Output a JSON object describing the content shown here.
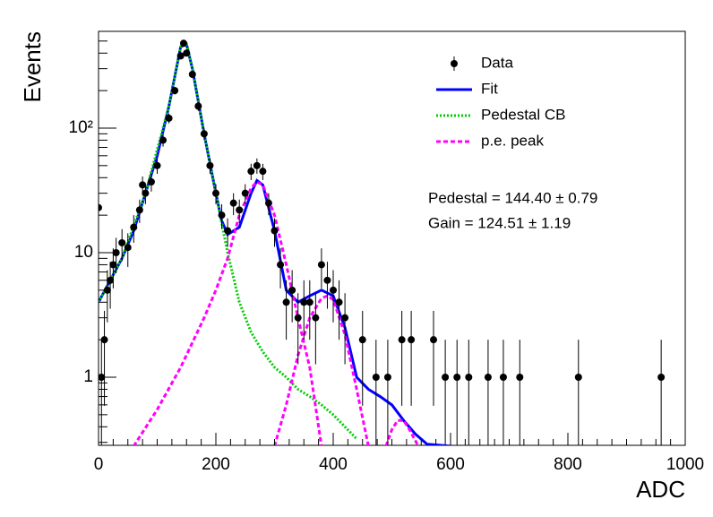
{
  "chart_data": {
    "type": "scatter",
    "xlabel": "ADC",
    "ylabel": "Events",
    "xlim": [
      0,
      1000
    ],
    "ylim": [
      0.284,
      598
    ],
    "log_y": true,
    "xticks": [
      0,
      200,
      400,
      600,
      800,
      1000
    ],
    "yticks": [
      1,
      10,
      {
        "value": 100,
        "label": "10²"
      }
    ],
    "legend": "top-right",
    "data": {
      "name": "Data",
      "color": "#000000",
      "x": [
        0,
        5,
        10,
        15,
        20,
        25,
        30,
        40,
        50,
        60,
        70,
        75,
        80,
        90,
        100,
        110,
        120,
        130,
        140,
        145,
        150,
        160,
        170,
        180,
        190,
        200,
        210,
        220,
        230,
        240,
        250,
        260,
        270,
        280,
        290,
        300,
        310,
        320,
        330,
        340,
        350,
        360,
        370,
        380,
        390,
        400,
        410,
        420,
        450,
        473,
        493,
        517,
        533,
        571,
        591,
        611,
        631,
        664,
        690,
        718,
        818,
        959
      ],
      "values": [
        23,
        1,
        2,
        5,
        6,
        8,
        10,
        12,
        11,
        16,
        22,
        35,
        30,
        37,
        50,
        80,
        120,
        200,
        380,
        480,
        400,
        270,
        150,
        90,
        50,
        30,
        20,
        15,
        25,
        22,
        30,
        45,
        50,
        45,
        25,
        15,
        8,
        4,
        5,
        3,
        4,
        4,
        3,
        8,
        6,
        5,
        4,
        3,
        2,
        1,
        1,
        2,
        2,
        2,
        1,
        1,
        1,
        1,
        1,
        1,
        1,
        1
      ],
      "errors": [
        4.8,
        1,
        1.41,
        2.24,
        2.45,
        2.83,
        3.16,
        3.46,
        3.32,
        4,
        4.69,
        5.92,
        5.48,
        6.08,
        7.07,
        8.94,
        10.95,
        14.14,
        19.49,
        21.91,
        20,
        16.43,
        12.25,
        9.49,
        7.07,
        5.48,
        4.47,
        3.87,
        5,
        4.69,
        5.48,
        6.71,
        7.07,
        6.71,
        5,
        3.87,
        2.83,
        2,
        2.24,
        1.73,
        2,
        2,
        1.73,
        2.83,
        2.45,
        2.24,
        2,
        1.73,
        1.41,
        1,
        1,
        1.41,
        1.41,
        1.41,
        1,
        1,
        1,
        1,
        1,
        1,
        1,
        1
      ]
    },
    "curves": [
      {
        "name": "Fit",
        "color": "#0000ff",
        "style": "solid",
        "segments": [
          {
            "x": [
              0,
              20,
              40,
              60,
              80,
              100,
              120,
              140,
              150,
              160,
              180,
              200,
              210,
              220,
              240,
              260,
              270,
              280,
              300,
              320,
              340,
              360,
              380,
              400,
              420,
              440,
              460,
              480,
              500,
              520,
              540,
              560,
              600
            ],
            "values": [
              4,
              6,
              9,
              15,
              30,
              60,
              150,
              450,
              470,
              300,
              90,
              30,
              18,
              14,
              16,
              30,
              38,
              35,
              15,
              5,
              4,
              4.5,
              5,
              4.5,
              2.5,
              1,
              0.8,
              0.7,
              0.6,
              0.45,
              0.35,
              0.29,
              0.28
            ]
          }
        ]
      },
      {
        "name": "Pedestal CB",
        "color": "#00cc00",
        "style": "dotted",
        "segments": [
          {
            "x": [
              0,
              40,
              80,
              120,
              140,
              150,
              160,
              180,
              200,
              220,
              240,
              260,
              280,
              300,
              320,
              340,
              360,
              380,
              400,
              420,
              440
            ],
            "values": [
              4,
              9,
              30,
              150,
              450,
              470,
              300,
              90,
              30,
              10,
              4,
              2.3,
              1.6,
              1.2,
              1,
              0.8,
              0.7,
              0.6,
              0.5,
              0.4,
              0.32
            ]
          }
        ]
      },
      {
        "name": "p.e. peak",
        "color": "#ff00ff",
        "style": "dashed",
        "segments": [
          {
            "x": [
              60,
              100,
              140,
              180,
              200,
              220,
              240,
              260,
              270,
              280,
              300,
              320,
              340,
              360,
              380
            ],
            "values": [
              0.28,
              0.55,
              1.2,
              3,
              5,
              9,
              20,
              33,
              37,
              35,
              20,
              8,
              3,
              1.2,
              0.28
            ]
          },
          {
            "x": [
              300,
              320,
              340,
              360,
              380,
              390,
              400,
              420,
              440,
              460
            ],
            "values": [
              0.28,
              0.6,
              1.5,
              3,
              4.3,
              4.5,
              4.2,
              2.2,
              0.8,
              0.28
            ]
          },
          {
            "x": [
              490,
              500,
              510,
              520,
              530,
              545
            ],
            "values": [
              0.28,
              0.38,
              0.45,
              0.45,
              0.38,
              0.28
            ]
          }
        ]
      }
    ],
    "annotations": [
      "Pedestal = 144.40 ± 0.79",
      "Gain = 124.51 ± 1.19"
    ]
  }
}
